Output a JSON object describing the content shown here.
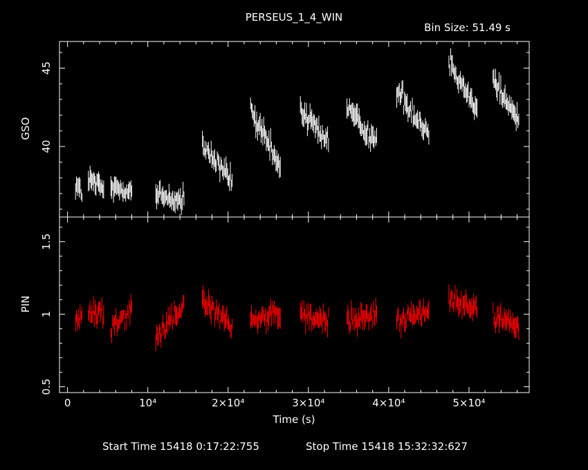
{
  "header": {
    "title": "PERSEUS_1_4_WIN",
    "bin_size": "Bin Size: 51.49 s"
  },
  "footer": {
    "start_time": "Start Time 15418  0:17:22:755",
    "stop_time": "Stop Time 15418 15:32:32:627"
  },
  "colors": {
    "gso": "#ffffff",
    "pin": "#ff0000",
    "axes": "#ffffff",
    "background": "#000000"
  },
  "chart_data": [
    {
      "type": "line",
      "ylabel": "GSO",
      "xlim": [
        -1000,
        57500
      ],
      "ylim": [
        35.5,
        46.7
      ],
      "y_ticks": [
        40,
        45
      ],
      "segments": [
        {
          "x": [
            1000,
            1800
          ],
          "y": [
            37.7,
            36.9
          ]
        },
        {
          "x": [
            2600,
            4500
          ],
          "y": [
            37.9,
            37.2
          ]
        },
        {
          "x": [
            5400,
            8000
          ],
          "y": [
            37.4,
            37.2
          ]
        },
        {
          "x": [
            11000,
            14500
          ],
          "y": [
            36.9,
            36.5
          ]
        },
        {
          "x": [
            16800,
            20500
          ],
          "y": [
            40.0,
            37.8
          ]
        },
        {
          "x": [
            22800,
            26500
          ],
          "y": [
            42.3,
            38.6
          ]
        },
        {
          "x": [
            29000,
            32500
          ],
          "y": [
            42.4,
            40.3
          ]
        },
        {
          "x": [
            34800,
            38500
          ],
          "y": [
            42.5,
            40.2
          ]
        },
        {
          "x": [
            41000,
            45000
          ],
          "y": [
            43.6,
            40.8
          ]
        },
        {
          "x": [
            47500,
            51000
          ],
          "y": [
            45.5,
            42.3
          ]
        },
        {
          "x": [
            53000,
            56200
          ],
          "y": [
            44.3,
            41.6
          ]
        }
      ]
    },
    {
      "type": "line",
      "xlabel": "Time (s)",
      "ylabel": "PIN",
      "xlim": [
        -1000,
        57500
      ],
      "ylim": [
        0.46,
        1.67
      ],
      "y_ticks": [
        0.5,
        1,
        1.5
      ],
      "y_tick_labels": [
        "0.5",
        "1",
        "1.5"
      ],
      "x_ticks": [
        0,
        10000,
        20000,
        30000,
        40000,
        50000
      ],
      "x_tick_labels": [
        "0",
        "10⁴",
        "2×10⁴",
        "3×10⁴",
        "4×10⁴",
        "5×10⁴"
      ],
      "segments": [
        {
          "x": [
            1000,
            1800
          ],
          "y": [
            0.95,
            1.0
          ]
        },
        {
          "x": [
            2600,
            4500
          ],
          "y": [
            0.98,
            1.02
          ]
        },
        {
          "x": [
            5400,
            8000
          ],
          "y": [
            0.9,
            1.05
          ]
        },
        {
          "x": [
            11000,
            14500
          ],
          "y": [
            0.85,
            1.05
          ]
        },
        {
          "x": [
            16800,
            20500
          ],
          "y": [
            1.1,
            0.9
          ]
        },
        {
          "x": [
            22800,
            26500
          ],
          "y": [
            0.95,
            1.0
          ]
        },
        {
          "x": [
            29000,
            32500
          ],
          "y": [
            1.0,
            0.95
          ]
        },
        {
          "x": [
            34800,
            38500
          ],
          "y": [
            0.95,
            1.0
          ]
        },
        {
          "x": [
            41000,
            45000
          ],
          "y": [
            0.95,
            1.02
          ]
        },
        {
          "x": [
            47500,
            51000
          ],
          "y": [
            1.1,
            1.05
          ]
        },
        {
          "x": [
            53000,
            56200
          ],
          "y": [
            1.0,
            0.9
          ]
        }
      ]
    }
  ]
}
